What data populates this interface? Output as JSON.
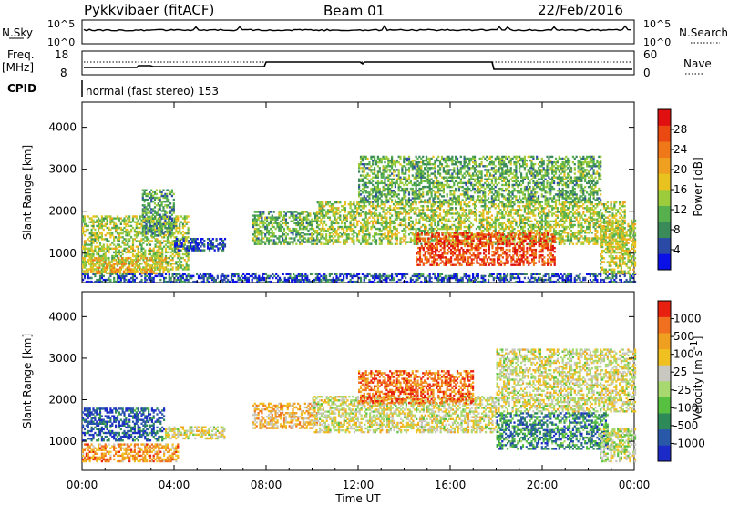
{
  "header": {
    "station": "Pykkvibaer (fitACF)",
    "beam": "Beam 01",
    "date": "22/Feb/2016"
  },
  "top_panel": {
    "nsky_label": "N.Sky",
    "nsearch_label": "N.Search",
    "left_ticks": [
      "10^5",
      "10^0"
    ],
    "right_ticks": [
      "10^5",
      "10^0"
    ]
  },
  "freq_panel": {
    "freq_label": "Freq.",
    "unit_label": "[MHz]",
    "nave_label": "Nave",
    "left_ticks": [
      "18",
      "8"
    ],
    "right_ticks": [
      "60",
      "0"
    ]
  },
  "cpid": {
    "label": "CPID",
    "text": "normal (fast stereo) 153"
  },
  "chart_data": [
    {
      "type": "heatmap",
      "panel": "power",
      "xlabel": "Time UT",
      "ylabel": "Slant Range [km]",
      "xlim": [
        0,
        24
      ],
      "ylim": [
        300,
        4600
      ],
      "x_ticks": [
        "00:00",
        "04:00",
        "08:00",
        "12:00",
        "16:00",
        "20:00",
        "00:00"
      ],
      "y_ticks": [
        "1000",
        "2000",
        "3000",
        "4000"
      ],
      "colorbar_label": "Power [dB]",
      "colorbar_ticks": [
        "4",
        "8",
        "12",
        "16",
        "20",
        "24",
        "28"
      ],
      "colorbar_colors": [
        "#0a10e6",
        "#2b4aa6",
        "#3a8a5a",
        "#56b04e",
        "#9ccc3c",
        "#e8c21e",
        "#f0a020",
        "#ef7818",
        "#ea4a12",
        "#e01010"
      ],
      "blobs": [
        {
          "t0": 0,
          "t1": 4.6,
          "r0": 550,
          "r1": 1900,
          "level": 0.45
        },
        {
          "t0": 0.2,
          "t1": 3.6,
          "r0": 500,
          "r1": 900,
          "level": 0.6
        },
        {
          "t0": 2.6,
          "t1": 4.0,
          "r0": 1400,
          "r1": 2500,
          "level": 0.3
        },
        {
          "t0": 4.0,
          "t1": 6.2,
          "r0": 1050,
          "r1": 1350,
          "level": 0.12
        },
        {
          "t0": 7.4,
          "t1": 10.2,
          "r0": 1200,
          "r1": 2000,
          "level": 0.35
        },
        {
          "t0": 10.2,
          "t1": 23.6,
          "r0": 1200,
          "r1": 2200,
          "level": 0.45
        },
        {
          "t0": 14.5,
          "t1": 20.5,
          "r0": 700,
          "r1": 1500,
          "level": 0.85
        },
        {
          "t0": 12.0,
          "t1": 22.5,
          "r0": 2200,
          "r1": 3300,
          "level": 0.35
        },
        {
          "t0": 0,
          "t1": 24,
          "r0": 300,
          "r1": 500,
          "level": 0.15
        },
        {
          "t0": 22.5,
          "t1": 24,
          "r0": 500,
          "r1": 1800,
          "level": 0.5
        }
      ]
    },
    {
      "type": "heatmap",
      "panel": "velocity",
      "xlabel": "Time UT",
      "ylabel": "Slant Range [km]",
      "xlim": [
        0,
        24
      ],
      "ylim": [
        300,
        4600
      ],
      "x_ticks": [
        "00:00",
        "04:00",
        "08:00",
        "12:00",
        "16:00",
        "20:00",
        "00:00"
      ],
      "y_ticks": [
        "1000",
        "2000",
        "3000",
        "4000"
      ],
      "colorbar_label": "Velocity [m s",
      "colorbar_unit_sup": "-1",
      "colorbar_ticks": [
        "1000",
        "500",
        "100",
        "25",
        "-25",
        "-100",
        "-500",
        "-1000"
      ],
      "colorbar_colors": [
        "#1c2bc8",
        "#2a58a8",
        "#2f8a5a",
        "#58c040",
        "#a8d870",
        "#c8c8c0",
        "#f0c020",
        "#f0a020",
        "#f07020",
        "#e82010"
      ],
      "blobs": [
        {
          "t0": 0,
          "t1": 3.6,
          "r0": 1000,
          "r1": 1800,
          "level": 0.15
        },
        {
          "t0": 0,
          "t1": 4.2,
          "r0": 500,
          "r1": 950,
          "level": 0.75
        },
        {
          "t0": 3.6,
          "t1": 6.2,
          "r0": 1050,
          "r1": 1350,
          "level": 0.55
        },
        {
          "t0": 7.4,
          "t1": 10.2,
          "r0": 1300,
          "r1": 1900,
          "level": 0.7
        },
        {
          "t0": 10.0,
          "t1": 18.0,
          "r0": 1200,
          "r1": 2100,
          "level": 0.55
        },
        {
          "t0": 12.0,
          "t1": 17.0,
          "r0": 1900,
          "r1": 2700,
          "level": 0.85
        },
        {
          "t0": 18.0,
          "t1": 22.8,
          "r0": 800,
          "r1": 1700,
          "level": 0.25
        },
        {
          "t0": 18.0,
          "t1": 24,
          "r0": 1700,
          "r1": 3200,
          "level": 0.55
        },
        {
          "t0": 22.5,
          "t1": 24,
          "r0": 500,
          "r1": 1300,
          "level": 0.5
        }
      ]
    }
  ]
}
